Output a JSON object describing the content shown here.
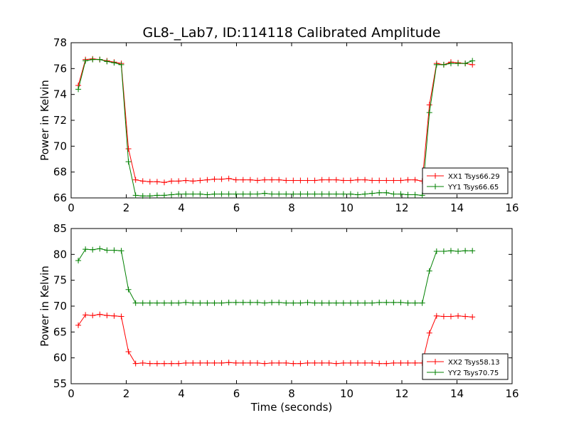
{
  "chart_data": [
    {
      "type": "line",
      "title": "GL8-_Lab7, ID:114118 Calibrated Amplitude",
      "xlabel": "",
      "ylabel": "Power in Kelvin",
      "xlim": [
        0,
        16
      ],
      "ylim": [
        66,
        78
      ],
      "xticks": [
        "0",
        "2",
        "4",
        "6",
        "8",
        "10",
        "12",
        "14",
        "16"
      ],
      "yticks": [
        "66",
        "68",
        "70",
        "72",
        "74",
        "76",
        "78"
      ],
      "legend_position": "lower-right",
      "grid": false,
      "x": [
        0.26,
        0.52,
        0.78,
        1.04,
        1.3,
        1.56,
        1.82,
        2.08,
        2.34,
        2.6,
        2.86,
        3.12,
        3.38,
        3.64,
        3.9,
        4.16,
        4.42,
        4.68,
        4.94,
        5.2,
        5.46,
        5.72,
        5.98,
        6.24,
        6.5,
        6.76,
        7.02,
        7.28,
        7.54,
        7.8,
        8.06,
        8.32,
        8.58,
        8.84,
        9.1,
        9.36,
        9.62,
        9.88,
        10.14,
        10.4,
        10.66,
        10.92,
        11.18,
        11.44,
        11.7,
        11.96,
        12.22,
        12.48,
        12.74,
        13.0,
        13.26,
        13.52,
        13.78,
        14.04,
        14.3,
        14.56
      ],
      "series": [
        {
          "name": "XX1 Tsys66.29",
          "color": "#ff0000",
          "values": [
            74.7,
            76.7,
            76.75,
            76.7,
            76.6,
            76.5,
            76.4,
            69.8,
            67.4,
            67.3,
            67.25,
            67.25,
            67.2,
            67.3,
            67.3,
            67.35,
            67.3,
            67.35,
            67.4,
            67.45,
            67.45,
            67.5,
            67.4,
            67.4,
            67.4,
            67.35,
            67.4,
            67.4,
            67.4,
            67.35,
            67.35,
            67.35,
            67.35,
            67.35,
            67.4,
            67.4,
            67.4,
            67.35,
            67.35,
            67.4,
            67.4,
            67.35,
            67.35,
            67.35,
            67.35,
            67.35,
            67.4,
            67.4,
            67.3,
            73.2,
            76.4,
            76.3,
            76.5,
            76.45,
            76.4,
            76.3
          ]
        },
        {
          "name": "YY1 Tsys66.65",
          "color": "#008000",
          "values": [
            74.4,
            76.6,
            76.7,
            76.7,
            76.55,
            76.45,
            76.3,
            68.8,
            66.2,
            66.15,
            66.15,
            66.2,
            66.2,
            66.25,
            66.3,
            66.3,
            66.3,
            66.3,
            66.25,
            66.3,
            66.3,
            66.3,
            66.3,
            66.3,
            66.3,
            66.3,
            66.35,
            66.3,
            66.3,
            66.3,
            66.3,
            66.3,
            66.3,
            66.3,
            66.3,
            66.3,
            66.3,
            66.3,
            66.3,
            66.25,
            66.3,
            66.35,
            66.4,
            66.4,
            66.3,
            66.3,
            66.25,
            66.25,
            66.2,
            72.6,
            76.3,
            76.3,
            76.4,
            76.4,
            76.4,
            76.6
          ]
        }
      ]
    },
    {
      "type": "line",
      "title": "",
      "xlabel": "Time (seconds)",
      "ylabel": "Power in Kelvin",
      "xlim": [
        0,
        16
      ],
      "ylim": [
        55,
        85
      ],
      "xticks": [
        "0",
        "2",
        "4",
        "6",
        "8",
        "10",
        "12",
        "14",
        "16"
      ],
      "yticks": [
        "55",
        "60",
        "65",
        "70",
        "75",
        "80",
        "85"
      ],
      "legend_position": "lower-right",
      "grid": false,
      "x": [
        0.26,
        0.52,
        0.78,
        1.04,
        1.3,
        1.56,
        1.82,
        2.08,
        2.34,
        2.6,
        2.86,
        3.12,
        3.38,
        3.64,
        3.9,
        4.16,
        4.42,
        4.68,
        4.94,
        5.2,
        5.46,
        5.72,
        5.98,
        6.24,
        6.5,
        6.76,
        7.02,
        7.28,
        7.54,
        7.8,
        8.06,
        8.32,
        8.58,
        8.84,
        9.1,
        9.36,
        9.62,
        9.88,
        10.14,
        10.4,
        10.66,
        10.92,
        11.18,
        11.44,
        11.7,
        11.96,
        12.22,
        12.48,
        12.74,
        13.0,
        13.26,
        13.52,
        13.78,
        14.04,
        14.3,
        14.56
      ],
      "series": [
        {
          "name": "XX2 Tsys58.13",
          "color": "#ff0000",
          "values": [
            66.3,
            68.3,
            68.2,
            68.4,
            68.2,
            68.1,
            68.0,
            61.2,
            58.9,
            59.0,
            58.9,
            58.9,
            58.9,
            58.9,
            58.9,
            59.0,
            59.0,
            59.0,
            59.0,
            59.0,
            59.0,
            59.1,
            59.0,
            59.0,
            59.0,
            59.0,
            58.9,
            59.0,
            59.0,
            59.0,
            58.9,
            58.9,
            59.0,
            59.0,
            59.0,
            59.0,
            58.9,
            59.0,
            59.0,
            59.0,
            59.0,
            59.0,
            58.9,
            58.9,
            59.0,
            59.0,
            59.0,
            59.0,
            59.0,
            64.8,
            68.1,
            68.0,
            68.0,
            68.1,
            68.0,
            67.9
          ]
        },
        {
          "name": "YY2 Tsys70.75",
          "color": "#008000",
          "values": [
            78.8,
            81.0,
            80.9,
            81.1,
            80.8,
            80.8,
            80.7,
            73.2,
            70.6,
            70.6,
            70.6,
            70.6,
            70.6,
            70.6,
            70.6,
            70.7,
            70.6,
            70.6,
            70.6,
            70.6,
            70.6,
            70.7,
            70.7,
            70.7,
            70.7,
            70.7,
            70.6,
            70.7,
            70.7,
            70.6,
            70.6,
            70.6,
            70.7,
            70.6,
            70.6,
            70.6,
            70.6,
            70.6,
            70.6,
            70.6,
            70.6,
            70.6,
            70.7,
            70.7,
            70.7,
            70.7,
            70.6,
            70.6,
            70.6,
            76.8,
            80.6,
            80.6,
            80.7,
            80.6,
            80.7,
            80.7
          ]
        }
      ]
    }
  ]
}
